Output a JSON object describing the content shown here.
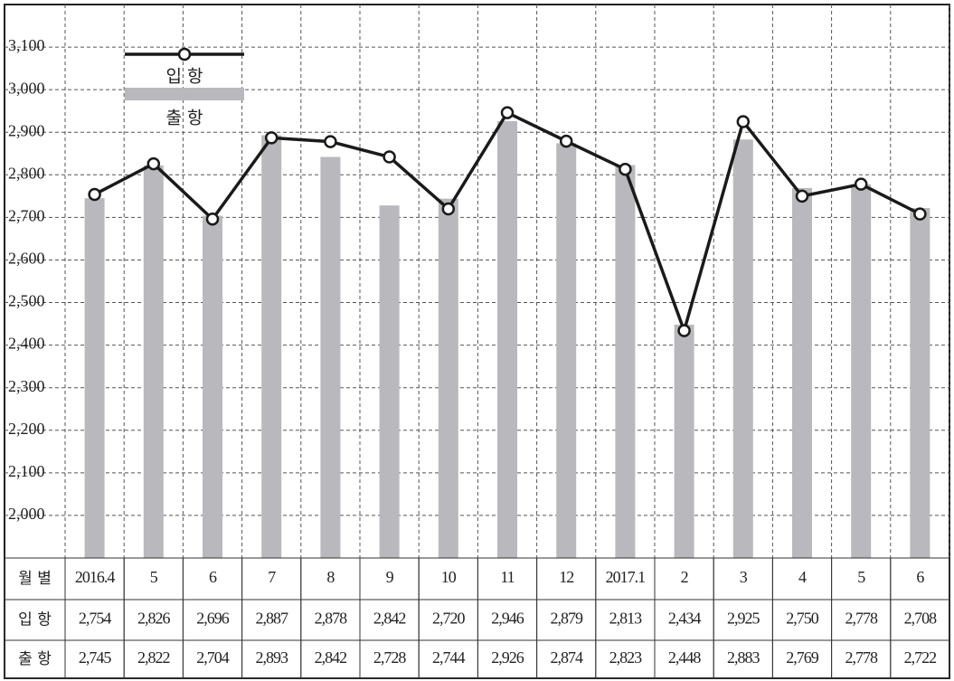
{
  "chart_data": {
    "type": "bar_line",
    "categories": [
      "2016.4",
      "5",
      "6",
      "7",
      "8",
      "9",
      "10",
      "11",
      "12",
      "2017.1",
      "2",
      "3",
      "4",
      "5",
      "6"
    ],
    "category_header": "월 별",
    "series": [
      {
        "name": "입 항",
        "type": "line",
        "color": "#1a1a1a",
        "values": [
          2754,
          2826,
          2696,
          2887,
          2878,
          2842,
          2720,
          2946,
          2879,
          2813,
          2434,
          2925,
          2750,
          2778,
          2708
        ],
        "value_labels": [
          "2,754",
          "2,826",
          "2,696",
          "2,887",
          "2,878",
          "2,842",
          "2,720",
          "2,946",
          "2,879",
          "2,813",
          "2,434",
          "2,925",
          "2,750",
          "2,778",
          "2,708"
        ]
      },
      {
        "name": "출 항",
        "type": "bar",
        "color": "#b9b9bd",
        "values": [
          2745,
          2822,
          2704,
          2893,
          2842,
          2728,
          2744,
          2926,
          2874,
          2823,
          2448,
          2883,
          2769,
          2778,
          2722
        ],
        "value_labels": [
          "2,745",
          "2,822",
          "2,704",
          "2,893",
          "2,842",
          "2,728",
          "2,744",
          "2,926",
          "2,874",
          "2,823",
          "2,448",
          "2,883",
          "2,769",
          "2,778",
          "2,722"
        ]
      }
    ],
    "ylim": [
      1900,
      3200
    ],
    "yticks": [
      {
        "value": 2000,
        "label": "2,000"
      },
      {
        "value": 2100,
        "label": "2,100"
      },
      {
        "value": 2200,
        "label": "2,200"
      },
      {
        "value": 2300,
        "label": "2,300"
      },
      {
        "value": 2400,
        "label": "2,400"
      },
      {
        "value": 2500,
        "label": "2,500"
      },
      {
        "value": 2600,
        "label": "2,600"
      },
      {
        "value": 2700,
        "label": "2,700"
      },
      {
        "value": 2800,
        "label": "2,800"
      },
      {
        "value": 2900,
        "label": "2,900"
      },
      {
        "value": 3000,
        "label": "3,000"
      },
      {
        "value": 3100,
        "label": "3,100"
      }
    ],
    "grid": true
  }
}
